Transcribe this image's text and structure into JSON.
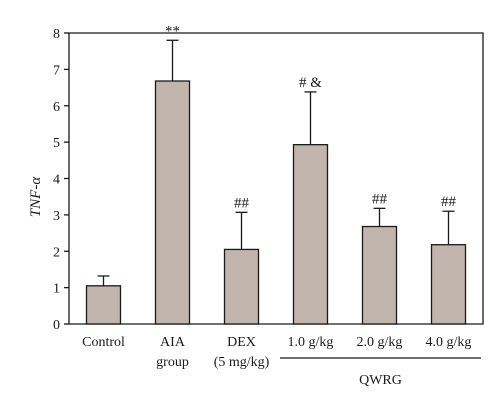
{
  "chart_data": {
    "type": "bar",
    "ylabel": "TNF-α",
    "ylim": [
      0,
      8
    ],
    "yticks": [
      0,
      1,
      2,
      3,
      4,
      5,
      6,
      7,
      8
    ],
    "categories": [
      {
        "line1": "Control",
        "line2": ""
      },
      {
        "line1": "AIA",
        "line2": "group"
      },
      {
        "line1": "DEX",
        "line2": "(5 mg/kg)"
      },
      {
        "line1": "1.0 g/kg",
        "line2": ""
      },
      {
        "line1": "2.0 g/kg",
        "line2": ""
      },
      {
        "line1": "4.0 g/kg",
        "line2": ""
      }
    ],
    "values": [
      1.05,
      6.68,
      2.05,
      4.93,
      2.68,
      2.18
    ],
    "errors": [
      0.27,
      1.12,
      1.02,
      1.45,
      0.5,
      0.92
    ],
    "significance": [
      "",
      "**",
      "##",
      "# &",
      "##",
      "##"
    ],
    "group_label": "QWRG",
    "group_span": [
      3,
      5
    ],
    "bar_color": "#c2b5ad"
  }
}
